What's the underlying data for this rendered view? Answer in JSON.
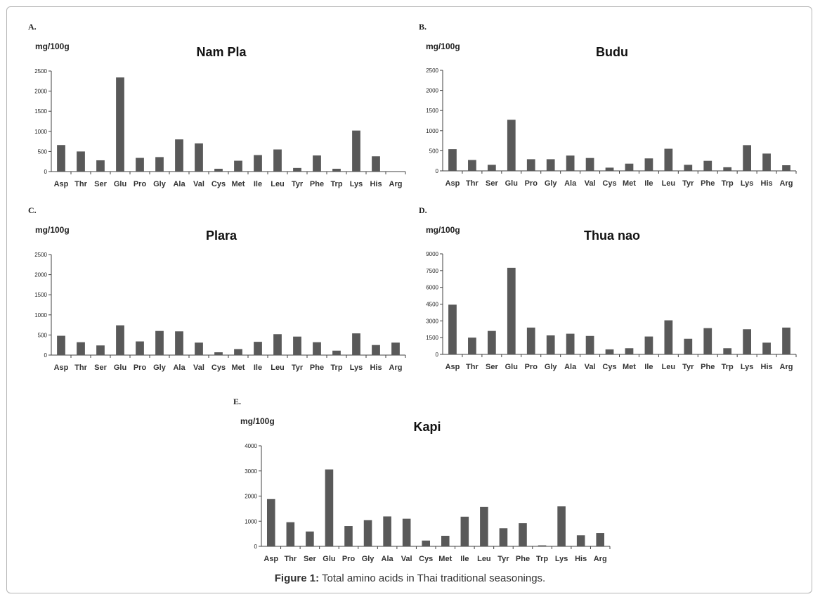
{
  "figure": {
    "caption_label": "Figure 1:",
    "caption_text": " Total amino acids in Thai traditional seasonings."
  },
  "colors": {
    "bar": "#595959",
    "axis": "#404040",
    "text": "#222222"
  },
  "chart_data": [
    {
      "type": "bar",
      "panel_label": "A.",
      "title": "Nam Pla",
      "ylabel": "mg/100g",
      "ylim": [
        0,
        2500
      ],
      "yticks": [
        "0",
        "500",
        "1000",
        "1500",
        "2000",
        "2500"
      ],
      "categories": [
        "Asp",
        "Thr",
        "Ser",
        "Glu",
        "Pro",
        "Gly",
        "Ala",
        "Val",
        "Cys",
        "Met",
        "Ile",
        "Leu",
        "Tyr",
        "Phe",
        "Trp",
        "Lys",
        "His",
        "Arg"
      ],
      "values": [
        660,
        500,
        280,
        2340,
        340,
        360,
        800,
        700,
        70,
        270,
        410,
        550,
        90,
        400,
        70,
        1020,
        380,
        0
      ]
    },
    {
      "type": "bar",
      "panel_label": "B.",
      "title": "Budu",
      "ylabel": "mg/100g",
      "ylim": [
        0,
        2500
      ],
      "yticks": [
        "0",
        "500",
        "1000",
        "1500",
        "2000",
        "2500"
      ],
      "categories": [
        "Asp",
        "Thr",
        "Ser",
        "Glu",
        "Pro",
        "Gly",
        "Ala",
        "Val",
        "Cys",
        "Met",
        "Ile",
        "Leu",
        "Tyr",
        "Phe",
        "Trp",
        "Lys",
        "His",
        "Arg"
      ],
      "values": [
        540,
        270,
        150,
        1270,
        290,
        290,
        380,
        320,
        80,
        180,
        310,
        550,
        150,
        250,
        90,
        640,
        430,
        140
      ]
    },
    {
      "type": "bar",
      "panel_label": "C.",
      "title": "Plara",
      "ylabel": "mg/100g",
      "ylim": [
        0,
        2500
      ],
      "yticks": [
        "0",
        "500",
        "1000",
        "1500",
        "2000",
        "2500"
      ],
      "categories": [
        "Asp",
        "Thr",
        "Ser",
        "Glu",
        "Pro",
        "Gly",
        "Ala",
        "Val",
        "Cys",
        "Met",
        "Ile",
        "Leu",
        "Tyr",
        "Phe",
        "Trp",
        "Lys",
        "His",
        "Arg"
      ],
      "values": [
        480,
        320,
        240,
        740,
        340,
        600,
        590,
        310,
        70,
        150,
        330,
        520,
        460,
        320,
        110,
        540,
        250,
        310
      ]
    },
    {
      "type": "bar",
      "panel_label": "D.",
      "title": "Thua nao",
      "ylabel": "mg/100g",
      "ylim": [
        0,
        9000
      ],
      "yticks": [
        "0",
        "1500",
        "3000",
        "4500",
        "6000",
        "7500",
        "9000"
      ],
      "categories": [
        "Asp",
        "Thr",
        "Ser",
        "Glu",
        "Pro",
        "Gly",
        "Ala",
        "Val",
        "Cys",
        "Met",
        "Ile",
        "Leu",
        "Tyr",
        "Phe",
        "Trp",
        "Lys",
        "His",
        "Arg"
      ],
      "values": [
        4450,
        1500,
        2100,
        7750,
        2400,
        1700,
        1850,
        1650,
        450,
        550,
        1600,
        3050,
        1400,
        2350,
        550,
        2250,
        1050,
        2400
      ]
    },
    {
      "type": "bar",
      "panel_label": "E.",
      "title": "Kapi",
      "ylabel": "mg/100g",
      "ylim": [
        0,
        4000
      ],
      "yticks": [
        "0",
        "1000",
        "2000",
        "3000",
        "4000"
      ],
      "categories": [
        "Asp",
        "Thr",
        "Ser",
        "Glu",
        "Pro",
        "Gly",
        "Ala",
        "Val",
        "Cys",
        "Met",
        "Ile",
        "Leu",
        "Tyr",
        "Phe",
        "Trp",
        "Lys",
        "His",
        "Arg"
      ],
      "values": [
        1880,
        960,
        590,
        3060,
        810,
        1040,
        1190,
        1100,
        230,
        420,
        1180,
        1570,
        720,
        920,
        40,
        1590,
        440,
        530
      ]
    }
  ]
}
